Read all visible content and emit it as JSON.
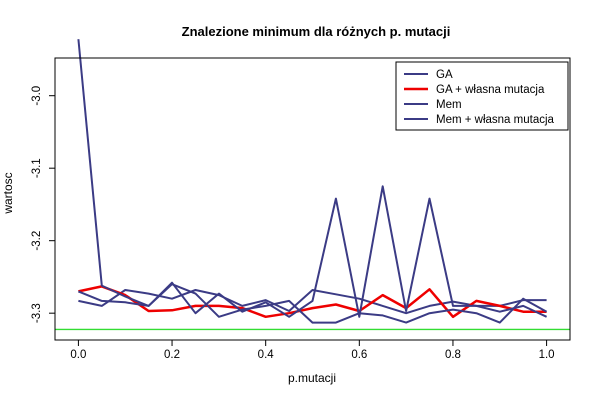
{
  "chart_data": {
    "type": "line",
    "title": "Znalezione minimum dla różnych p. mutacji",
    "xlabel": "p.mutacji",
    "ylabel": "wartosc",
    "xlim": [
      -0.05,
      1.05
    ],
    "ylim": [
      -3.337,
      -2.948
    ],
    "x_ticks": [
      0.0,
      0.2,
      0.4,
      0.6,
      0.8,
      1.0
    ],
    "x_tick_labels": [
      "0.0",
      "0.2",
      "0.4",
      "0.6",
      "0.8",
      "1.0"
    ],
    "y_ticks": [
      -3.3,
      -3.2,
      -3.1,
      -3.0
    ],
    "y_tick_labels": [
      "-3.3",
      "-3.2",
      "-3.1",
      "-3.0"
    ],
    "grid": false,
    "legend_position": "top-right",
    "x": [
      0.0,
      0.05,
      0.1,
      0.15,
      0.2,
      0.25,
      0.3,
      0.35,
      0.4,
      0.45,
      0.5,
      0.55,
      0.6,
      0.65,
      0.7,
      0.75,
      0.8,
      0.85,
      0.9,
      0.95,
      1.0
    ],
    "series": [
      {
        "name": "GA",
        "color": "#3b3b85",
        "width": 2,
        "values": [
          -3.283,
          -3.29,
          -3.268,
          -3.273,
          -3.28,
          -3.268,
          -3.275,
          -3.29,
          -3.282,
          -3.297,
          -3.268,
          -3.274,
          -3.28,
          -3.29,
          -3.3,
          -3.29,
          -3.284,
          -3.29,
          -3.29,
          -3.282,
          -3.282
        ]
      },
      {
        "name": "GA + własna mutacja",
        "color": "#ee0000",
        "width": 2.5,
        "values": [
          -3.27,
          -3.263,
          -3.275,
          -3.297,
          -3.296,
          -3.29,
          -3.29,
          -3.293,
          -3.305,
          -3.3,
          -3.293,
          -3.288,
          -3.297,
          -3.275,
          -3.293,
          -3.267,
          -3.305,
          -3.283,
          -3.29,
          -3.298,
          -3.298
        ]
      },
      {
        "name": "Mem",
        "color": "#3b3b85",
        "width": 2,
        "values": [
          -2.922,
          -3.262,
          -3.277,
          -3.29,
          -3.258,
          -3.3,
          -3.273,
          -3.298,
          -3.285,
          -3.305,
          -3.283,
          -3.142,
          -3.305,
          -3.125,
          -3.297,
          -3.142,
          -3.29,
          -3.29,
          -3.298,
          -3.29,
          -3.305
        ]
      },
      {
        "name": "Mem + własna mutacja",
        "color": "#3b3b85",
        "width": 2,
        "values": [
          -3.27,
          -3.283,
          -3.285,
          -3.29,
          -3.26,
          -3.273,
          -3.305,
          -3.295,
          -3.29,
          -3.283,
          -3.313,
          -3.313,
          -3.3,
          -3.303,
          -3.313,
          -3.3,
          -3.295,
          -3.3,
          -3.313,
          -3.28,
          -3.298
        ]
      }
    ],
    "reference_line": {
      "y": -3.3224,
      "color": "#33dd33"
    }
  }
}
